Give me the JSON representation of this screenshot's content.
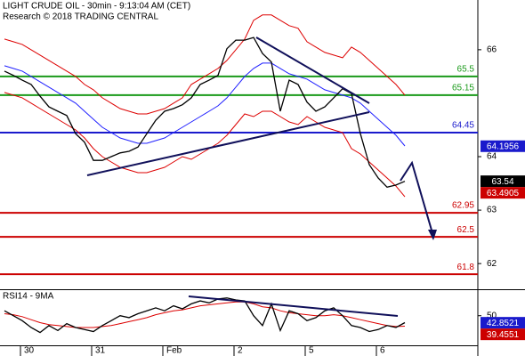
{
  "chart_data": [
    {
      "type": "line",
      "title": "LIGHT CRUDE OIL - 30min - 9:13:04 AM (CET)",
      "subtitle": "Research © 2018 TRADING CENTRAL",
      "x": [
        0,
        1,
        2,
        3,
        4,
        5,
        6,
        7,
        8,
        9,
        10,
        11,
        12,
        13,
        14,
        15,
        16,
        17,
        18,
        19,
        20,
        21,
        22,
        23,
        24,
        25,
        26,
        27,
        28,
        29,
        30,
        31,
        32,
        33,
        34,
        35,
        36,
        37,
        38,
        39,
        40,
        41,
        42,
        43,
        44,
        45
      ],
      "xlim": [
        -0.5,
        53.2
      ],
      "xticks": [
        {
          "value": 1.8,
          "label": "30"
        },
        {
          "value": 9.8,
          "label": "31"
        },
        {
          "value": 17.8,
          "label": "Feb"
        },
        {
          "value": 25.8,
          "label": "2"
        },
        {
          "value": 33.8,
          "label": "5"
        },
        {
          "value": 41.8,
          "label": "6"
        }
      ],
      "ylim": [
        61.52,
        66.93
      ],
      "yticks": [
        66,
        64,
        63,
        62
      ],
      "series": [
        {
          "color": "#2020ff",
          "values": [
            65.7,
            65.65,
            65.6,
            65.5,
            65.4,
            65.3,
            65.2,
            65.1,
            65.0,
            64.85,
            64.7,
            64.55,
            64.45,
            64.35,
            64.3,
            64.25,
            64.25,
            64.3,
            64.35,
            64.45,
            64.55,
            64.65,
            64.75,
            64.85,
            64.95,
            65.1,
            65.3,
            65.5,
            65.65,
            65.75,
            65.75,
            65.65,
            65.55,
            65.5,
            65.45,
            65.35,
            65.25,
            65.2,
            65.15,
            65.1,
            65.0,
            64.85,
            64.7,
            64.55,
            64.4,
            64.2
          ]
        },
        {
          "color": "#dd0000",
          "values": [
            66.2,
            66.15,
            66.1,
            66.0,
            65.9,
            65.8,
            65.7,
            65.6,
            65.5,
            65.35,
            65.25,
            65.1,
            65.0,
            64.9,
            64.85,
            64.8,
            64.8,
            64.85,
            64.9,
            65.0,
            65.1,
            65.35,
            65.45,
            65.55,
            65.65,
            65.8,
            66.0,
            66.2,
            66.55,
            66.65,
            66.65,
            66.55,
            66.45,
            66.4,
            66.15,
            66.05,
            65.95,
            65.9,
            65.85,
            66.05,
            65.95,
            65.8,
            65.65,
            65.5,
            65.35,
            65.15
          ]
        },
        {
          "color": "#dd0000",
          "values": [
            65.2,
            65.15,
            65.1,
            65.0,
            64.9,
            64.8,
            64.7,
            64.6,
            64.5,
            64.35,
            64.15,
            64.0,
            63.9,
            63.8,
            63.75,
            63.7,
            63.7,
            63.75,
            63.8,
            63.9,
            64.0,
            63.95,
            64.05,
            64.15,
            64.25,
            64.4,
            64.6,
            64.8,
            64.75,
            64.85,
            64.85,
            64.75,
            64.65,
            64.6,
            64.75,
            64.65,
            64.55,
            64.5,
            64.45,
            64.15,
            64.05,
            63.9,
            63.75,
            63.6,
            63.45,
            63.25
          ]
        },
        {
          "color": "#000000",
          "values": [
            65.6,
            65.52,
            65.43,
            65.35,
            65.13,
            64.93,
            64.85,
            64.77,
            64.43,
            64.27,
            63.93,
            63.93,
            64.0,
            64.07,
            64.1,
            64.18,
            64.43,
            64.68,
            64.85,
            64.9,
            64.97,
            65.1,
            65.35,
            65.43,
            65.52,
            66.02,
            66.18,
            66.18,
            66.23,
            65.93,
            65.77,
            64.85,
            65.43,
            65.35,
            65.02,
            64.85,
            64.93,
            65.1,
            65.27,
            65.18,
            64.43,
            63.85,
            63.6,
            63.43,
            63.47,
            63.54
          ]
        }
      ],
      "levels": [
        {
          "value": 65.5,
          "color": "#1a9a1a"
        },
        {
          "value": 65.15,
          "color": "#1a9a1a"
        },
        {
          "value": 64.45,
          "color": "#1a1acc"
        },
        {
          "value": 62.95,
          "color": "#cc0000"
        },
        {
          "value": 62.5,
          "color": "#cc0000"
        },
        {
          "value": 61.8,
          "color": "#cc0000"
        }
      ],
      "price_tags": [
        {
          "value": 64.1956,
          "color": "#1a1acc"
        },
        {
          "value": 63.54,
          "color": "#000000"
        },
        {
          "value": 63.4905,
          "color": "#cc0000"
        }
      ]
    },
    {
      "type": "line",
      "title": "RSI14 - 9MA",
      "x": [
        0,
        1,
        2,
        3,
        4,
        5,
        6,
        7,
        8,
        9,
        10,
        11,
        12,
        13,
        14,
        15,
        16,
        17,
        18,
        19,
        20,
        21,
        22,
        23,
        24,
        25,
        26,
        27,
        28,
        29,
        30,
        31,
        32,
        33,
        34,
        35,
        36,
        37,
        38,
        39,
        40,
        41,
        42,
        43,
        44,
        45
      ],
      "xlim": [
        -0.5,
        53.2
      ],
      "ylim": [
        20,
        75
      ],
      "yticks": [
        50
      ],
      "series": [
        {
          "color": "#dd0000",
          "values": [
            52,
            51,
            49,
            46,
            43,
            41,
            40,
            39,
            38,
            38,
            38,
            39,
            40,
            42,
            44,
            46,
            48,
            51,
            53,
            55,
            56,
            58,
            60,
            61,
            62,
            63,
            64,
            64,
            62,
            59,
            58,
            55,
            53,
            52,
            51,
            50,
            50,
            51,
            50,
            48,
            46,
            44,
            42,
            40,
            39,
            39.4
          ]
        },
        {
          "color": "#000000",
          "values": [
            55,
            50,
            45,
            38,
            33,
            40,
            35,
            42,
            38,
            36,
            34,
            40,
            45,
            50,
            48,
            52,
            55,
            58,
            55,
            60,
            57,
            62,
            65,
            63,
            67,
            68,
            66,
            65,
            50,
            40,
            62,
            35,
            55,
            52,
            45,
            48,
            55,
            58,
            50,
            40,
            38,
            34,
            36,
            40,
            38,
            43
          ]
        }
      ],
      "price_tags": [
        {
          "value": 42.8521,
          "color": "#1a1acc"
        },
        {
          "value": 39.4551,
          "color": "#cc0000"
        }
      ]
    }
  ]
}
